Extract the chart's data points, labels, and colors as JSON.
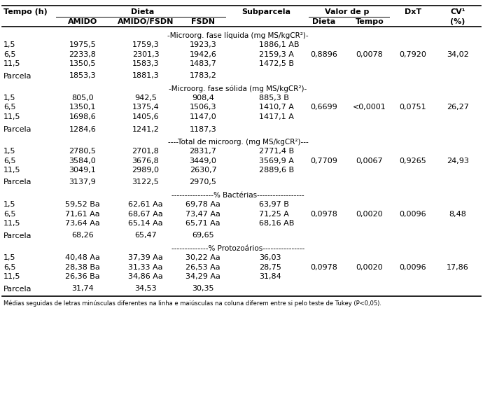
{
  "footnote": "Médias seguidas de letras minúsculas diferentes na linha e maiúsculas na coluna diferem entre si pelo teste de Tukey (P<0,05).",
  "sections": [
    {
      "label": "-Microorg. fase líquida (mg MS/kgCR²)-",
      "rows": [
        {
          "tempo": "1,5",
          "amido": "1975,5",
          "amido_fsdn": "1759,3",
          "fsdn": "1923,3",
          "sub": "1886,1 AB",
          "dieta": "",
          "tempo_p": "",
          "dxt": "",
          "cv": ""
        },
        {
          "tempo": "6,5",
          "amido": "2233,8",
          "amido_fsdn": "2301,3",
          "fsdn": "1942,6",
          "sub": "2159,3 A",
          "dieta": "0,8896",
          "tempo_p": "0,0078",
          "dxt": "0,7920",
          "cv": "34,02"
        },
        {
          "tempo": "11,5",
          "amido": "1350,5",
          "amido_fsdn": "1583,3",
          "fsdn": "1483,7",
          "sub": "1472,5 B",
          "dieta": "",
          "tempo_p": "",
          "dxt": "",
          "cv": ""
        }
      ],
      "parcela": {
        "amido": "1853,3",
        "amido_fsdn": "1881,3",
        "fsdn": "1783,2"
      }
    },
    {
      "label": "-Microorg. fase sólida (mg MS/kgCR²)-",
      "rows": [
        {
          "tempo": "1,5",
          "amido": "805,0",
          "amido_fsdn": "942,5",
          "fsdn": "908,4",
          "sub": "885,3 B",
          "dieta": "",
          "tempo_p": "",
          "dxt": "",
          "cv": ""
        },
        {
          "tempo": "6,5",
          "amido": "1350,1",
          "amido_fsdn": "1375,4",
          "fsdn": "1506,3",
          "sub": "1410,7 A",
          "dieta": "0,6699",
          "tempo_p": "<0,0001",
          "dxt": "0,0751",
          "cv": "26,27"
        },
        {
          "tempo": "11,5",
          "amido": "1698,6",
          "amido_fsdn": "1405,6",
          "fsdn": "1147,0",
          "sub": "1417,1 A",
          "dieta": "",
          "tempo_p": "",
          "dxt": "",
          "cv": ""
        }
      ],
      "parcela": {
        "amido": "1284,6",
        "amido_fsdn": "1241,2",
        "fsdn": "1187,3"
      }
    },
    {
      "label": "----Total de microorg. (mg MS/kgCR²)---",
      "rows": [
        {
          "tempo": "1,5",
          "amido": "2780,5",
          "amido_fsdn": "2701,8",
          "fsdn": "2831,7",
          "sub": "2771,4 B",
          "dieta": "",
          "tempo_p": "",
          "dxt": "",
          "cv": ""
        },
        {
          "tempo": "6,5",
          "amido": "3584,0",
          "amido_fsdn": "3676,8",
          "fsdn": "3449,0",
          "sub": "3569,9 A",
          "dieta": "0,7709",
          "tempo_p": "0,0067",
          "dxt": "0,9265",
          "cv": "24,93"
        },
        {
          "tempo": "11,5",
          "amido": "3049,1",
          "amido_fsdn": "2989,0",
          "fsdn": "2630,7",
          "sub": "2889,6 B",
          "dieta": "",
          "tempo_p": "",
          "dxt": "",
          "cv": ""
        }
      ],
      "parcela": {
        "amido": "3137,9",
        "amido_fsdn": "3122,5",
        "fsdn": "2970,5"
      }
    },
    {
      "label": "----------------% Bactérias------------------",
      "rows": [
        {
          "tempo": "1,5",
          "amido": "59,52 Ba",
          "amido_fsdn": "62,61 Aa",
          "fsdn": "69,78 Aa",
          "sub": "63,97 B",
          "dieta": "",
          "tempo_p": "",
          "dxt": "",
          "cv": ""
        },
        {
          "tempo": "6,5",
          "amido": "71,61 Aa",
          "amido_fsdn": "68,67 Aa",
          "fsdn": "73,47 Aa",
          "sub": "71,25 A",
          "dieta": "0,0978",
          "tempo_p": "0,0020",
          "dxt": "0,0096",
          "cv": "8,48"
        },
        {
          "tempo": "11,5",
          "amido": "73,64 Aa",
          "amido_fsdn": "65,14 Aa",
          "fsdn": "65,71 Aa",
          "sub": "68,16 AB",
          "dieta": "",
          "tempo_p": "",
          "dxt": "",
          "cv": ""
        }
      ],
      "parcela": {
        "amido": "68,26",
        "amido_fsdn": "65,47",
        "fsdn": "69,65"
      }
    },
    {
      "label": "--------------% Protozoários----------------",
      "rows": [
        {
          "tempo": "1,5",
          "amido": "40,48 Aa",
          "amido_fsdn": "37,39 Aa",
          "fsdn": "30,22 Aa",
          "sub": "36,03",
          "dieta": "",
          "tempo_p": "",
          "dxt": "",
          "cv": ""
        },
        {
          "tempo": "6,5",
          "amido": "28,38 Ba",
          "amido_fsdn": "31,33 Aa",
          "fsdn": "26,53 Aa",
          "sub": "28,75",
          "dieta": "0,0978",
          "tempo_p": "0,0020",
          "dxt": "0,0096",
          "cv": "17,86"
        },
        {
          "tempo": "11,5",
          "amido": "26,36 Ba",
          "amido_fsdn": "34,86 Aa",
          "fsdn": "34,29 Aa",
          "sub": "31,84",
          "dieta": "",
          "tempo_p": "",
          "dxt": "",
          "cv": ""
        }
      ],
      "parcela": {
        "amido": "31,74",
        "amido_fsdn": "34,53",
        "fsdn": "30,35"
      }
    }
  ],
  "bg_color": "#ffffff",
  "text_color": "#000000",
  "font_size": 8.0,
  "line_lw_heavy": 1.2,
  "line_lw_light": 0.7
}
